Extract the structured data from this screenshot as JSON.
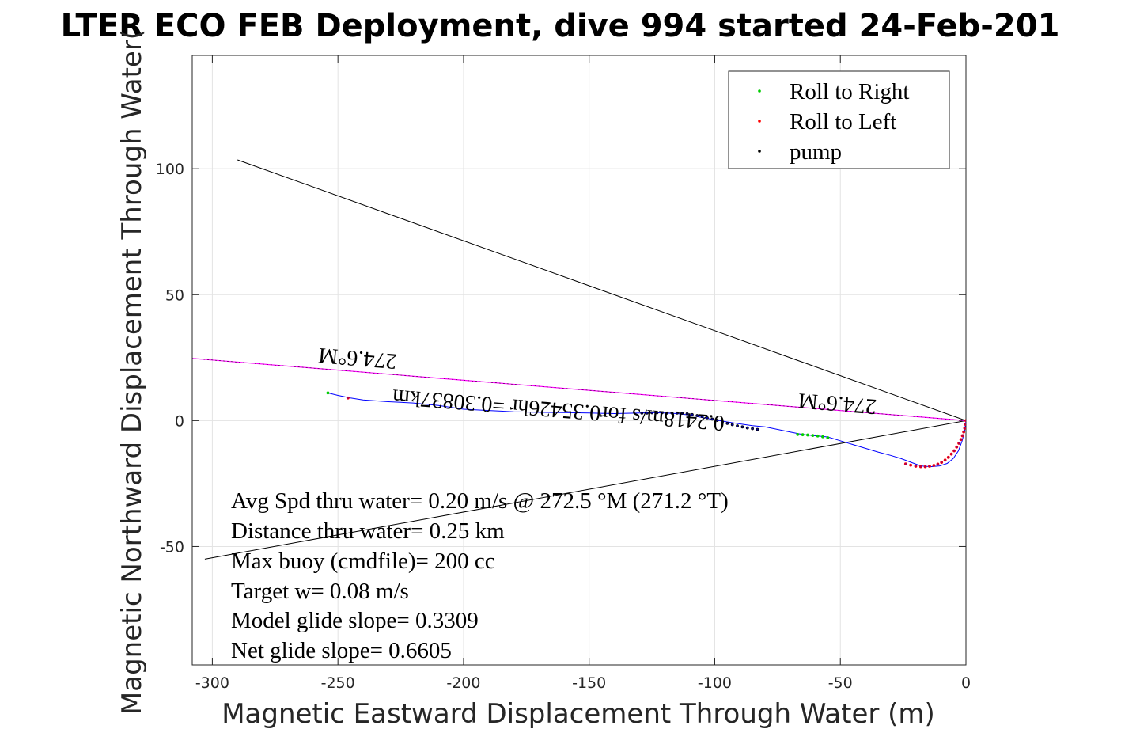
{
  "chart_data": {
    "type": "scatter",
    "title": "LTER ECO FEB Deployment, dive 994 started 24-Feb-201",
    "xlabel": "Magnetic Eastward Displacement Through Water (m)",
    "ylabel": "Magnetic Northward Displacement Through Water(",
    "xlim": [
      -308,
      0
    ],
    "ylim": [
      -97,
      145
    ],
    "xticks": [
      -300,
      -250,
      -200,
      -150,
      -100,
      -50,
      0
    ],
    "yticks": [
      -50,
      0,
      50,
      100
    ],
    "xtick_labels": [
      "-300",
      "-250",
      "-200",
      "-150",
      "-100",
      "-50",
      "0"
    ],
    "ytick_labels": [
      "-50",
      "0",
      "50",
      "100"
    ],
    "grid": true,
    "legend_position": "top-right",
    "legend": [
      {
        "label": "Roll to Right",
        "color": "#00cc00"
      },
      {
        "label": "Roll to Left",
        "color": "#ff0000"
      },
      {
        "label": "pump",
        "color": "#000000"
      }
    ],
    "track": {
      "name": "track",
      "color": "#0000ff",
      "x": [
        0,
        -0.5,
        -1.5,
        -3,
        -5,
        -7.5,
        -10.5,
        -14,
        -18,
        -22,
        -26,
        -30,
        -35,
        -40,
        -45,
        -50,
        -55,
        -60,
        -65,
        -70,
        -75,
        -80,
        -85,
        -90,
        -95,
        -100,
        -105,
        -110,
        -115,
        -120,
        -125,
        -130,
        -140,
        -150,
        -160,
        -170,
        -180,
        -190,
        -200,
        -210,
        -220,
        -230,
        -240,
        -245,
        -250,
        -254
      ],
      "y": [
        0,
        -4,
        -8,
        -12,
        -15,
        -17,
        -18,
        -18.3,
        -18,
        -16.5,
        -15,
        -13.8,
        -12.5,
        -11,
        -9.5,
        -8,
        -6.5,
        -6,
        -5.5,
        -4.5,
        -3.5,
        -2.5,
        -2,
        -1.3,
        -0.5,
        0.3,
        1.2,
        2.2,
        2.8,
        3,
        3.2,
        3,
        2.8,
        3,
        3.2,
        3.3,
        3.5,
        4,
        4.5,
        6,
        7,
        7.5,
        8.2,
        9,
        10,
        11
      ]
    },
    "roll_left": {
      "x": [
        0,
        -0.2,
        -0.5,
        -0.9,
        -1.4,
        -2,
        -2.8,
        -3.7,
        -4.7,
        -5.8,
        -7,
        -8.3,
        -9.7,
        -11.2,
        -12.8,
        -14.5,
        -16.2,
        -18,
        -20,
        -22,
        -24,
        -246
      ],
      "y": [
        0,
        -1.5,
        -3,
        -4.5,
        -6,
        -7.5,
        -9,
        -10.5,
        -12,
        -13.3,
        -14.6,
        -15.7,
        -16.6,
        -17.3,
        -17.8,
        -18.1,
        -18.3,
        -18.3,
        -18.1,
        -17.7,
        -17.2,
        9
      ]
    },
    "roll_right": {
      "x": [
        -67,
        -65,
        -63,
        -61,
        -59,
        -57,
        -55,
        -254
      ],
      "y": [
        -5.5,
        -5.6,
        -5.7,
        -5.9,
        -6.1,
        -6.4,
        -6.8,
        11
      ]
    },
    "pump": {
      "x": [
        -83,
        -85,
        -87,
        -89,
        -91,
        -93,
        -95,
        -97,
        -99,
        -101,
        -103,
        -105,
        -107,
        -109,
        -111,
        -113,
        -115,
        -117,
        -119,
        -121,
        -123,
        -125,
        -127,
        -129
      ],
      "y": [
        -3.5,
        -3.2,
        -2.9,
        -2.5,
        -2.1,
        -1.6,
        -1.1,
        -0.5,
        0.1,
        0.6,
        1.1,
        1.6,
        2,
        2.4,
        2.7,
        2.9,
        3.0,
        3.0,
        3.0,
        3.1,
        3.1,
        3.1,
        3.0,
        3.0
      ]
    },
    "heading_line": {
      "color": "#ff00ff",
      "x": [
        0,
        -308
      ],
      "y": [
        0,
        24.7
      ]
    },
    "wedge_lines": [
      {
        "x": [
          0,
          -290
        ],
        "y": [
          0,
          103.5
        ]
      },
      {
        "x": [
          0,
          -303
        ],
        "y": [
          0,
          -55
        ]
      }
    ],
    "rotated_labels": [
      {
        "text": "274.6°M",
        "x": -242,
        "y": 27.5
      },
      {
        "text": "274.6°M",
        "x": -51,
        "y": 9.5
      },
      {
        "text": "0.2418m/s for0.35426hr =0.30837km",
        "x": -162,
        "y": 7
      }
    ],
    "annotations": [
      "Avg Spd thru water=  0.20 m/s @ 272.5 °M (271.2 °T)",
      "Distance thru water=  0.25 km",
      "Max buoy (cmdfile)= 200 cc",
      "Target w= 0.08 m/s",
      "Model glide slope= 0.3309",
      "Net glide slope= 0.6605"
    ]
  }
}
